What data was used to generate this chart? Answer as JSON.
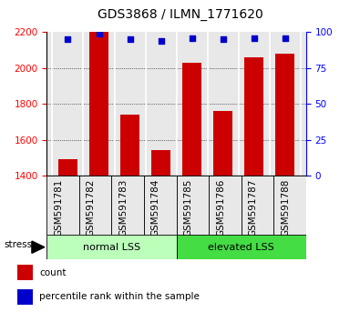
{
  "title": "GDS3868 / ILMN_1771620",
  "categories": [
    "GSM591781",
    "GSM591782",
    "GSM591783",
    "GSM591784",
    "GSM591785",
    "GSM591786",
    "GSM591787",
    "GSM591788"
  ],
  "counts": [
    1490,
    2200,
    1740,
    1540,
    2030,
    1760,
    2060,
    2080
  ],
  "percentiles": [
    95,
    99,
    95,
    94,
    96,
    95,
    96,
    96
  ],
  "ylim_left": [
    1400,
    2200
  ],
  "ylim_right": [
    0,
    100
  ],
  "yticks_left": [
    1400,
    1600,
    1800,
    2000,
    2200
  ],
  "yticks_right": [
    0,
    25,
    50,
    75,
    100
  ],
  "bar_color": "#cc0000",
  "dot_color": "#0000cc",
  "groups": [
    {
      "label": "normal LSS",
      "start": 0,
      "end": 4,
      "color": "#bbffbb"
    },
    {
      "label": "elevated LSS",
      "start": 4,
      "end": 8,
      "color": "#44dd44"
    }
  ],
  "stress_label": "stress",
  "legend_items": [
    {
      "color": "#cc0000",
      "label": "count"
    },
    {
      "color": "#0000cc",
      "label": "percentile rank within the sample"
    }
  ],
  "background_color": "#ffffff",
  "plot_bg_color": "#e8e8e8",
  "grid_color": "#000000",
  "title_fontsize": 10,
  "tick_fontsize": 7.5,
  "label_fontsize": 8
}
